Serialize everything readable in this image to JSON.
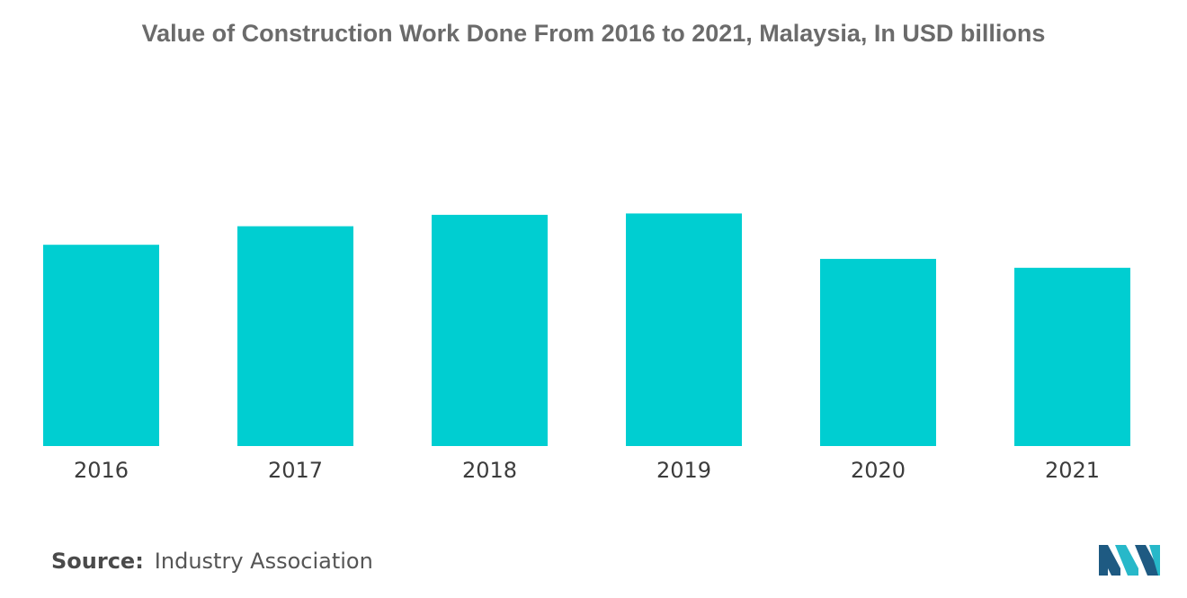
{
  "chart_data": {
    "type": "bar",
    "title": "Value of Construction Work Done From 2016 to 2021, Malaysia, In USD billions",
    "categories": [
      "2016",
      "2017",
      "2018",
      "2019",
      "2020",
      "2021"
    ],
    "values": [
      31.5,
      34.4,
      36.2,
      36.4,
      29.3,
      27.9
    ],
    "xlabel": "",
    "ylabel": "",
    "ylim": [
      0,
      58
    ],
    "grid": false,
    "legend": "none",
    "bar_color": "#00ced1"
  },
  "source": {
    "label": "Source:",
    "text": "Industry Association"
  },
  "logo": {
    "icon": "mordor-intelligence-logo-icon",
    "colors": [
      "#1e5a82",
      "#27b8c9"
    ]
  }
}
